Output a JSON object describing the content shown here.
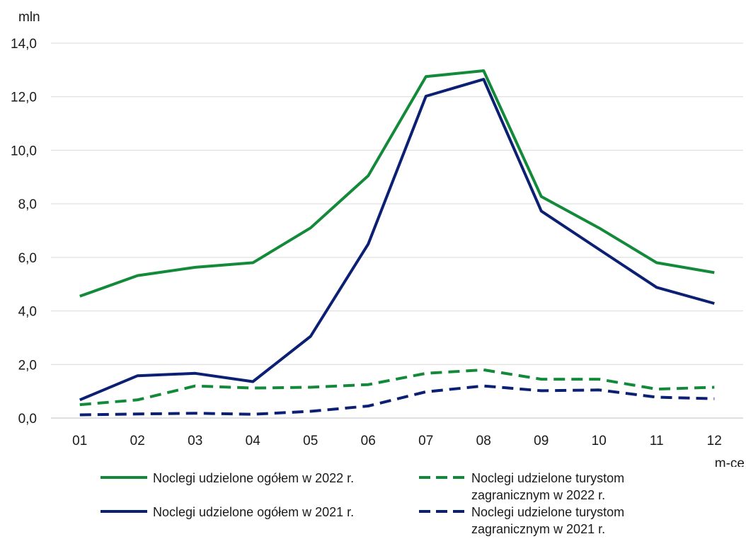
{
  "chart_data": {
    "type": "line",
    "ylabel": "mln",
    "xlabel": "m-ce",
    "categories": [
      "01",
      "02",
      "03",
      "04",
      "05",
      "06",
      "07",
      "08",
      "09",
      "10",
      "11",
      "12"
    ],
    "ylim": [
      0,
      14
    ],
    "yticks": [
      "0,0",
      "2,0",
      "4,0",
      "6,0",
      "8,0",
      "10,0",
      "12,0",
      "14,0"
    ],
    "ytick_values": [
      0,
      2,
      4,
      6,
      8,
      10,
      12,
      14
    ],
    "grid": true,
    "legend_position": "bottom",
    "series": [
      {
        "name": "Noclegi udzielone ogółem w 2022 r.",
        "color": "#128a3a",
        "dash": "solid",
        "values": [
          4.55,
          5.32,
          5.63,
          5.8,
          7.1,
          9.05,
          12.75,
          12.97,
          8.27,
          7.1,
          5.8,
          5.43
        ]
      },
      {
        "name": "Noclegi udzielone ogółem w 2021 r.",
        "color": "#0b1f73",
        "dash": "solid",
        "values": [
          0.68,
          1.58,
          1.67,
          1.36,
          3.05,
          6.5,
          12.02,
          12.65,
          7.73,
          6.3,
          4.88,
          4.28
        ]
      },
      {
        "name": "Noclegi udzielone turystom zagranicznym w 2022 r.",
        "color": "#128a3a",
        "dash": "dashed",
        "values": [
          0.5,
          0.68,
          1.2,
          1.12,
          1.15,
          1.25,
          1.67,
          1.8,
          1.45,
          1.45,
          1.08,
          1.15
        ]
      },
      {
        "name": "Noclegi udzielone turystom zagranicznym w 2021 r.",
        "color": "#0b1f73",
        "dash": "dashed",
        "values": [
          0.12,
          0.15,
          0.18,
          0.14,
          0.25,
          0.45,
          0.98,
          1.2,
          1.02,
          1.05,
          0.78,
          0.72
        ]
      }
    ]
  },
  "legend": [
    {
      "label": "Noclegi udzielone ogółem w 2022 r.",
      "color": "#128a3a",
      "dash": "solid"
    },
    {
      "label": "Noclegi udzielone turystom zagranicznym w 2022 r.",
      "color": "#128a3a",
      "dash": "dashed"
    },
    {
      "label": "Noclegi udzielone ogółem w 2021 r.",
      "color": "#0b1f73",
      "dash": "solid"
    },
    {
      "label": "Noclegi udzielone turystom zagranicznym  w 2021 r.",
      "color": "#0b1f73",
      "dash": "dashed"
    }
  ]
}
